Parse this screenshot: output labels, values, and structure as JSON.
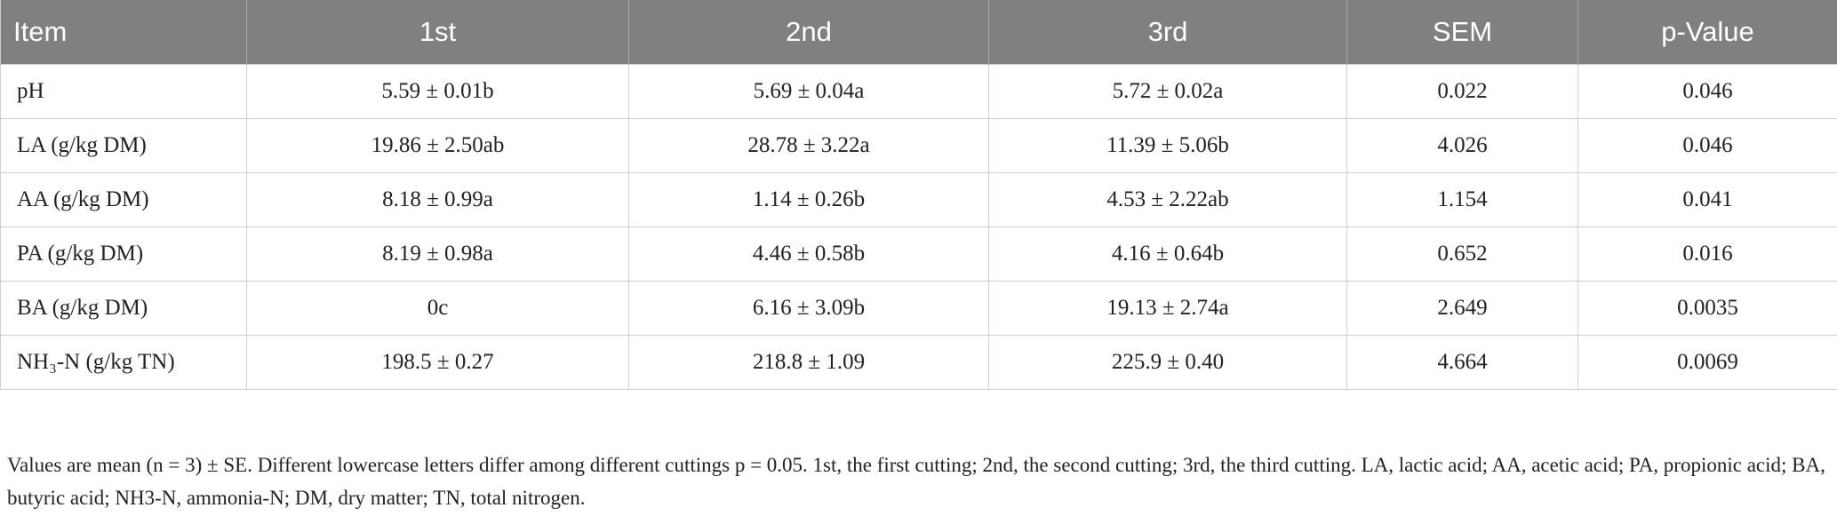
{
  "table": {
    "header": [
      "Item",
      "1st",
      "2nd",
      "3rd",
      "SEM",
      "p-Value"
    ],
    "rows": [
      [
        "pH",
        "5.59 ± 0.01b",
        "5.69 ± 0.04a",
        "5.72 ± 0.02a",
        "0.022",
        "0.046"
      ],
      [
        "LA (g/kg DM)",
        "19.86 ± 2.50ab",
        "28.78 ± 3.22a",
        "11.39 ± 5.06b",
        "4.026",
        "0.046"
      ],
      [
        "AA (g/kg DM)",
        "8.18 ± 0.99a",
        "1.14 ± 0.26b",
        "4.53 ± 2.22ab",
        "1.154",
        "0.041"
      ],
      [
        "PA (g/kg DM)",
        "8.19 ± 0.98a",
        "4.46 ± 0.58b",
        "4.16 ± 0.64b",
        "0.652",
        "0.016"
      ],
      [
        "BA (g/kg DM)",
        "0c",
        "6.16 ± 3.09b",
        "19.13 ± 2.74a",
        "2.649",
        "0.0035"
      ],
      [
        "NH₃-N (g/kg TN)",
        "198.5 ± 0.27",
        "218.8 ± 1.09",
        "225.9 ± 0.40",
        "4.664",
        "0.0069"
      ]
    ]
  },
  "footnote": "Values are mean (n = 3) ± SE. Different lowercase letters differ among different cuttings p = 0.05. 1st, the first cutting; 2nd, the second cutting; 3rd, the third cutting. LA, lactic acid; AA, acetic acid; PA, propionic acid; BA, butyric acid; NH3-N, ammonia-N; DM, dry matter; TN, total nitrogen."
}
